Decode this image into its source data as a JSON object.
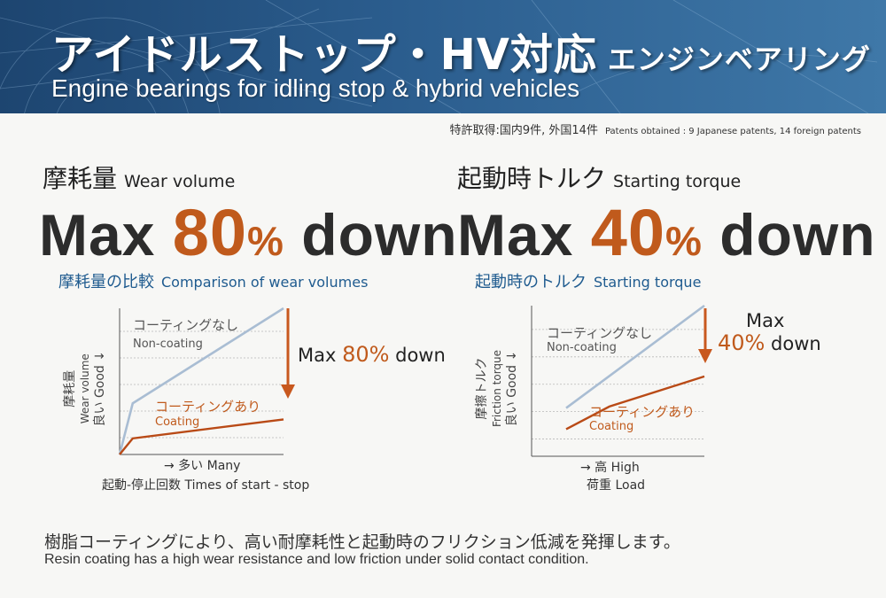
{
  "header": {
    "title_jp": "アイドルストップ・HV対応",
    "title_jp_sub": "エンジンベアリング",
    "title_en": "Engine bearings for idling stop & hybrid vehicles",
    "patents_jp": "特許取得:国内9件, 外国14件",
    "patents_en": "Patents obtained : 9 Japanese patents, 14 foreign patents"
  },
  "left": {
    "heading_jp": "摩耗量",
    "heading_en": "Wear volume",
    "big_pre": "Max ",
    "big_num": "80",
    "big_pct": "%",
    "big_post": " down",
    "sub_jp": "摩耗量の比較",
    "sub_en": "Comparison of wear volumes"
  },
  "right": {
    "heading_jp": "起動時トルク",
    "heading_en": "Starting torque",
    "big_pre": "Max ",
    "big_num": "40",
    "big_pct": "%",
    "big_post": " down",
    "sub_jp": "起動時のトルク",
    "sub_en": "Starting torque"
  },
  "footer": {
    "jp": "樹脂コーティングにより、高い耐摩耗性と起動時のフリクション低減を発揮します。",
    "en": "Resin coating has a high wear resistance and low friction under solid contact condition."
  },
  "colors": {
    "non_coating": "#a9bdd3",
    "coating": "#b94a16",
    "accent": "#c05a1c",
    "arrow": "#c8581e",
    "banner": "#24507e"
  },
  "chart_data": [
    {
      "type": "line",
      "title": "摩耗量の比較 Comparison of wear volumes",
      "ylabel_lines": [
        "摩耗量",
        "Wear volume",
        "良い Good ↓"
      ],
      "xlabel_lines": [
        "→ 多い Many",
        "起動-停止回数 Times of start - stop"
      ],
      "grid": true,
      "series": [
        {
          "name_jp": "コーティングなし",
          "name_en": "Non-coating",
          "color": "#a9bdd3",
          "points": [
            [
              0,
              0
            ],
            [
              0.08,
              0.35
            ],
            [
              1.0,
              1.0
            ]
          ]
        },
        {
          "name_jp": "コーティングあり",
          "name_en": "Coating",
          "color": "#b94a16",
          "points": [
            [
              0,
              0
            ],
            [
              0.08,
              0.11
            ],
            [
              1.0,
              0.24
            ]
          ]
        }
      ],
      "annotation": {
        "pre": "Max ",
        "num": "80%",
        "post": " down"
      }
    },
    {
      "type": "line",
      "title": "起動時のトルク Starting torque",
      "ylabel_lines": [
        "摩擦トルク",
        "Friction torque",
        "良い Good ↓"
      ],
      "xlabel_lines": [
        "→ 高 High",
        "荷重 Load"
      ],
      "grid": true,
      "series": [
        {
          "name_jp": "コーティングなし",
          "name_en": "Non-coating",
          "color": "#a9bdd3",
          "points": [
            [
              0.2,
              0.32
            ],
            [
              1.0,
              1.0
            ]
          ]
        },
        {
          "name_jp": "コーティングあり",
          "name_en": "Coating",
          "color": "#b94a16",
          "points": [
            [
              0.2,
              0.18
            ],
            [
              0.45,
              0.33
            ],
            [
              1.0,
              0.53
            ]
          ]
        }
      ],
      "annotation": {
        "line1": "Max",
        "num": "40%",
        "post": " down"
      }
    }
  ]
}
